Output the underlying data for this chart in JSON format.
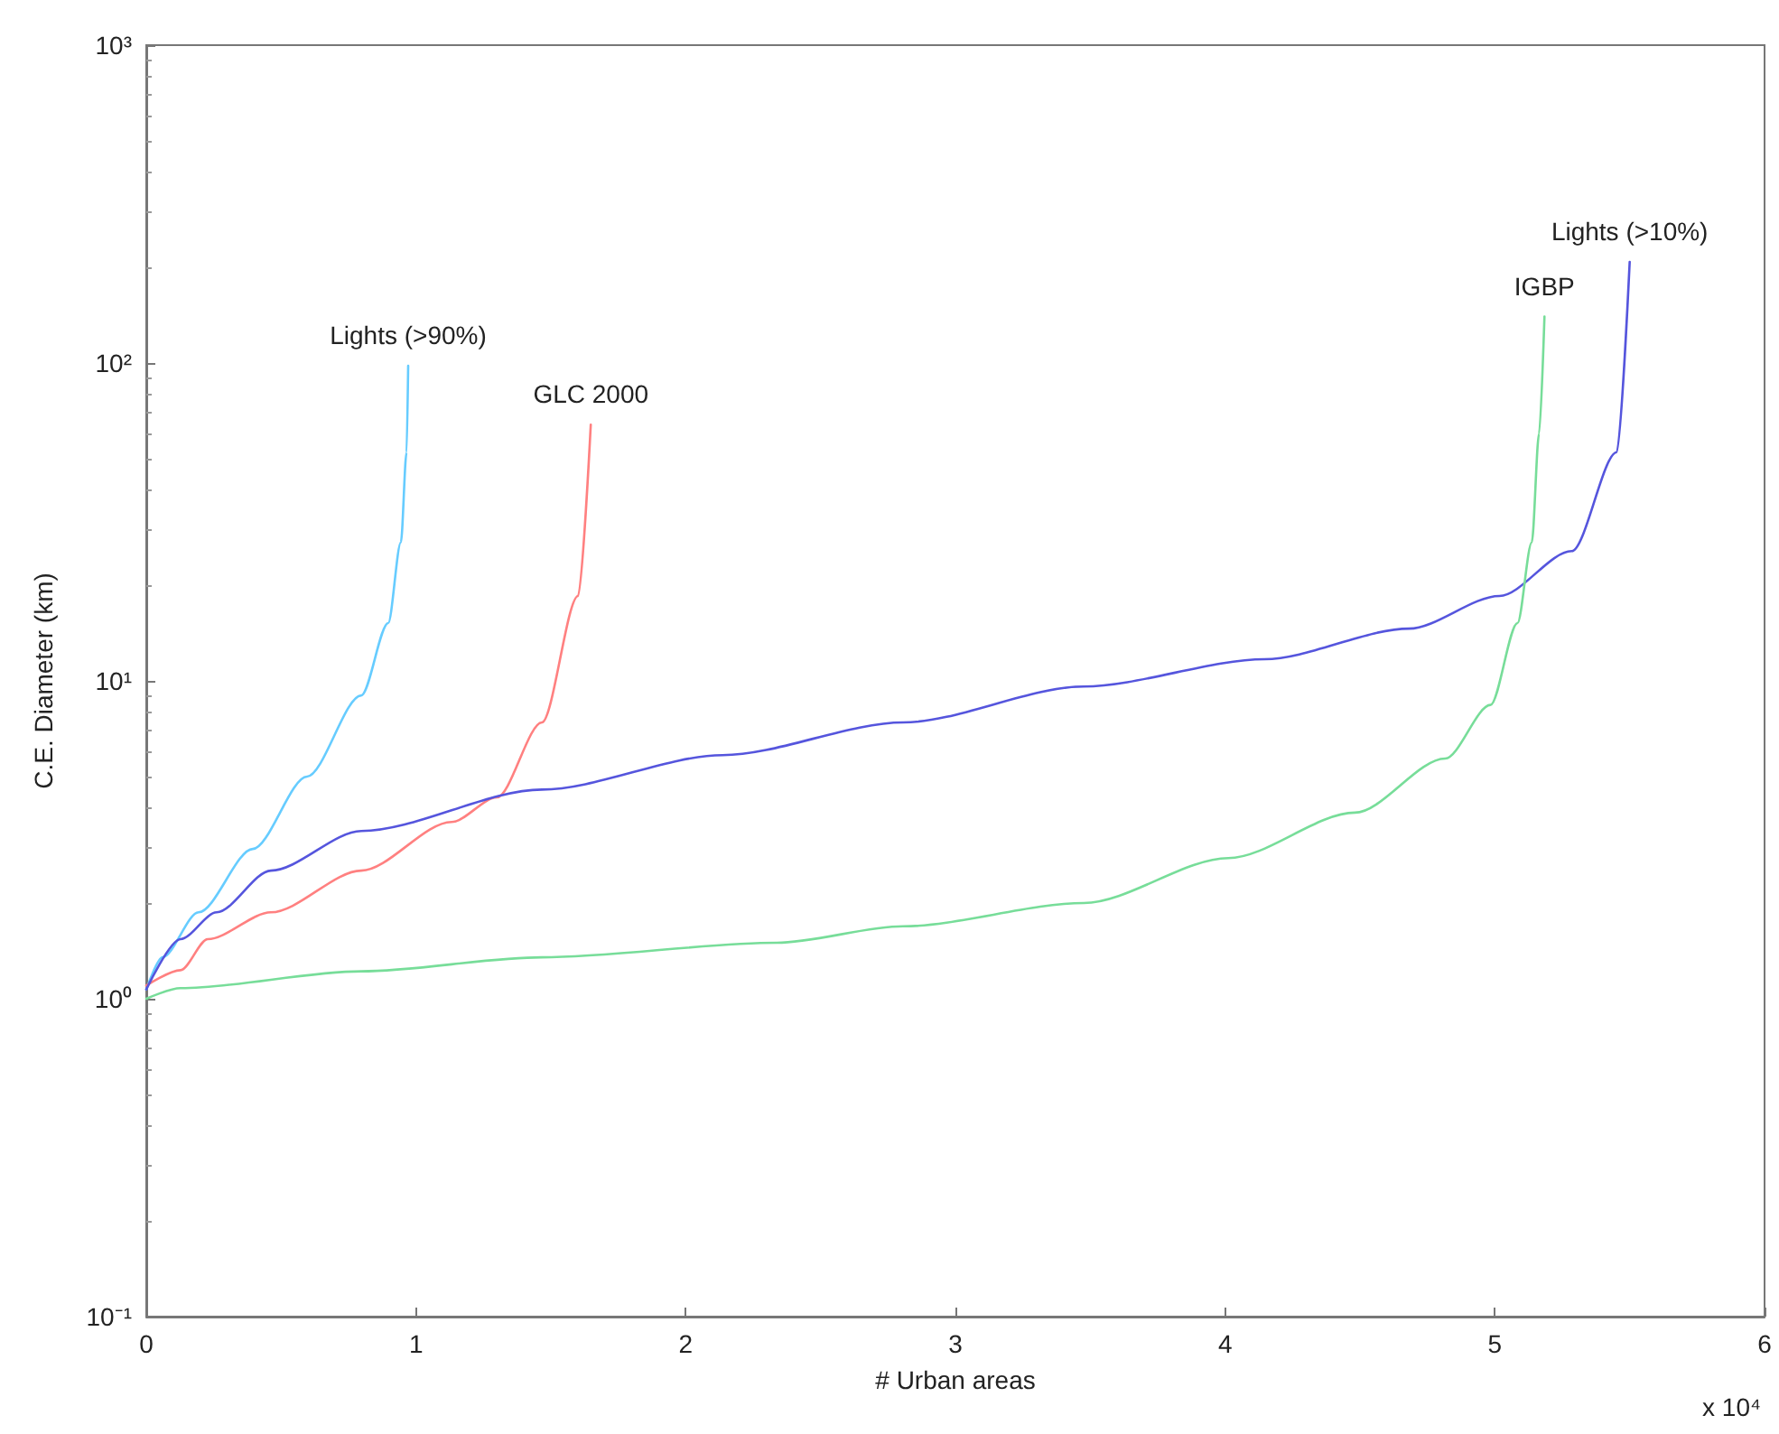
{
  "chart_data": {
    "type": "line",
    "xlabel": "# Urban areas",
    "ylabel": "C.E. Diameter (km)",
    "log": "y",
    "grid": false,
    "legend": false,
    "marker": "none",
    "xlim": [
      0,
      6
    ],
    "xticks": [
      0,
      1,
      2,
      3,
      4,
      5,
      6
    ],
    "ylim": [
      0.1,
      1000
    ],
    "yticks": [
      {
        "value": 0.1,
        "label": "10⁻¹"
      },
      {
        "value": 1,
        "label": "10⁰"
      },
      {
        "value": 10,
        "label": "10¹"
      },
      {
        "value": 100,
        "label": "10²"
      },
      {
        "value": 1000,
        "label": "10³"
      }
    ],
    "annotations": [
      "x 10⁴"
    ],
    "series": [
      {
        "name": "Lights (>90%)",
        "color": "#66ccff",
        "x": [
          0,
          0.06,
          0.194,
          0.395,
          0.596,
          0.797,
          0.897,
          0.944,
          0.965,
          0.971
        ],
        "values": [
          1.07,
          1.35,
          1.87,
          2.96,
          5.0,
          9.0,
          15.2,
          27.3,
          52.4,
          98
        ]
      },
      {
        "name": "GLC 2000",
        "color": "#ff8080",
        "x": [
          0,
          0.127,
          0.228,
          0.462,
          0.797,
          1.132,
          1.3,
          1.467,
          1.601,
          1.648
        ],
        "values": [
          1.1,
          1.23,
          1.54,
          1.87,
          2.53,
          3.6,
          4.3,
          7.4,
          18.5,
          64
        ]
      },
      {
        "name": "Lights (>10%)",
        "color": "#5555dd",
        "x": [
          0,
          0.127,
          0.261,
          0.462,
          0.797,
          1.467,
          2.137,
          2.806,
          3.476,
          4.146,
          4.682,
          5.017,
          5.285,
          5.452,
          5.5
        ],
        "values": [
          1.07,
          1.54,
          1.87,
          2.53,
          3.37,
          4.55,
          5.84,
          7.4,
          9.6,
          11.7,
          14.6,
          18.5,
          25.6,
          52.4,
          208
        ]
      },
      {
        "name": "IGBP",
        "color": "#77dd99",
        "x": [
          0,
          0.127,
          0.797,
          1.467,
          2.338,
          2.806,
          3.476,
          4.012,
          4.481,
          4.816,
          4.984,
          5.084,
          5.137,
          5.164,
          5.184
        ],
        "values": [
          1.0,
          1.08,
          1.22,
          1.35,
          1.5,
          1.69,
          2.0,
          2.77,
          3.85,
          5.7,
          8.4,
          15.2,
          27.3,
          60,
          140
        ]
      }
    ]
  }
}
